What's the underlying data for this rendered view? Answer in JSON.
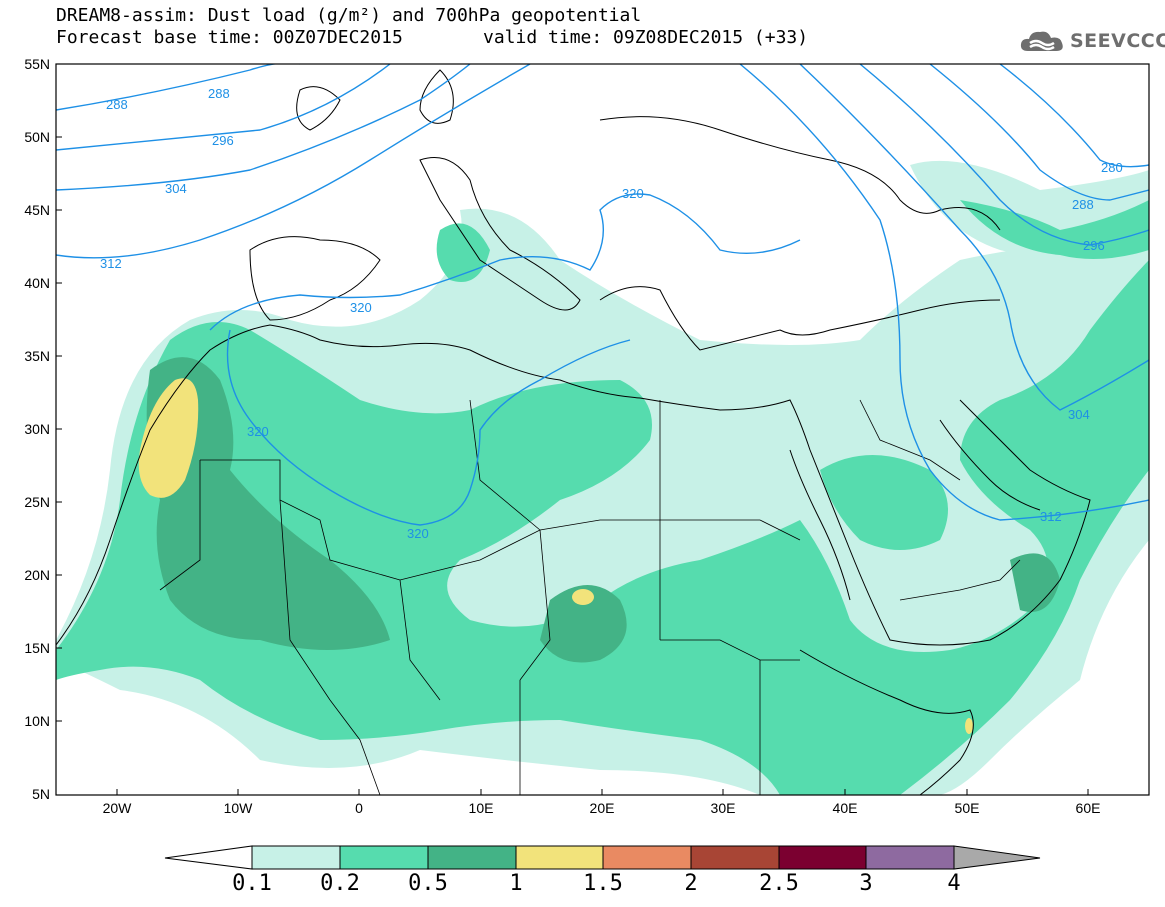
{
  "header": {
    "title_line1": "DREAM8-assim: Dust load (g/m²) and 700hPa geopotential",
    "title_line2": "Forecast base time: 00Z07DEC2015",
    "valid_time": "valid time: 09Z08DEC2015 (+33)"
  },
  "logo": {
    "text": "SEEVCCC",
    "icon": "cloud-icon",
    "color": "#6e6e6e"
  },
  "axes": {
    "lat_labels": [
      "55N",
      "50N",
      "45N",
      "40N",
      "35N",
      "30N",
      "25N",
      "20N",
      "15N",
      "10N",
      "5N"
    ],
    "lon_labels": [
      "20W",
      "10W",
      "0",
      "10E",
      "20E",
      "30E",
      "40E",
      "50E",
      "60E"
    ]
  },
  "contours": {
    "color": "#1e90e6",
    "labels": [
      "288",
      "288",
      "296",
      "304",
      "312",
      "320",
      "320",
      "320",
      "320",
      "280",
      "288",
      "296",
      "304",
      "312"
    ]
  },
  "colorbar": {
    "labels": [
      "0.1",
      "0.2",
      "0.5",
      "1",
      "1.5",
      "2",
      "2.5",
      "3",
      "4"
    ],
    "colors": [
      "#c7f1e7",
      "#56dcae",
      "#43b386",
      "#f2e37b",
      "#e98a62",
      "#a84535",
      "#7b0030",
      "#8e6aa0"
    ],
    "under_color": "#ffffff",
    "over_color": "#a9a9a9"
  },
  "palette": {
    "land_outline": "#000000",
    "dust_light": "#c7f1e7",
    "dust_mid": "#56dcae",
    "dust_dark": "#43b386",
    "dust_yellow": "#f2e37b"
  }
}
